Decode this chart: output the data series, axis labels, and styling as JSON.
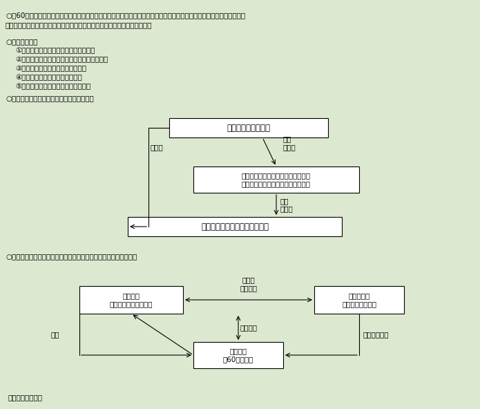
{
  "background_color": "#dde8d0",
  "text_color": "#000000",
  "box_facecolor": "#ffffff",
  "box_edgecolor": "#000000",
  "font_size": 8.5,
  "small_font_size": 7.5,
  "bullet": "○",
  "text1_line1": "○　60歳以上の高年齢者に対し、その職業経験を通じて得られた知識及び技能の活用を図ることができる短期的な雇用に",
  "text1_line2": "　　よる就業（職業経験活用就業）の機会を提供することを目的として設立",
  "text2_header": "○　業務の内容",
  "text2_items": [
    "①　労働者派遣（厚生労働大臣の許可）",
    "②　無料職業紹介（厚生労働大臣への届け出）",
    "③　職業経験活用就業に関する講習",
    "④　職業生活に関する相談・助言",
    "⑤　職業経験活用就業に関する啓発等"
  ],
  "text3": "○　高年齢者職業経験活用センターの概念図",
  "diagram1": {
    "box_koku": "国（厚生労働大臣）",
    "box_zenkoku": "全国高年齢者職業経験活用センター\n（財団法人高年齢者雇用開発協会）",
    "box_center": "高年齢者職業経験活用センター",
    "label_shitei_etc": "指定等",
    "label_shitei": "指定\n補助等",
    "label_shido": "指導\n助言等"
  },
  "text4": "○　高年齢者職業経験活用センターが行う労働者派遣事業の概念図",
  "diagram2": {
    "box_center": "高年齢者\n職業経験活用センター",
    "box_haken": "派　遣　先\n（会員事業所等）",
    "box_rodosha": "高年齢者\n（60歳以上）",
    "label_rodosha_contract": "労働者\n派遣契約",
    "label_koyo": "雇用関係",
    "label_toroku": "登録",
    "label_shiki": "指揮命令関係"
  },
  "footer": "資料：厚生労働省"
}
